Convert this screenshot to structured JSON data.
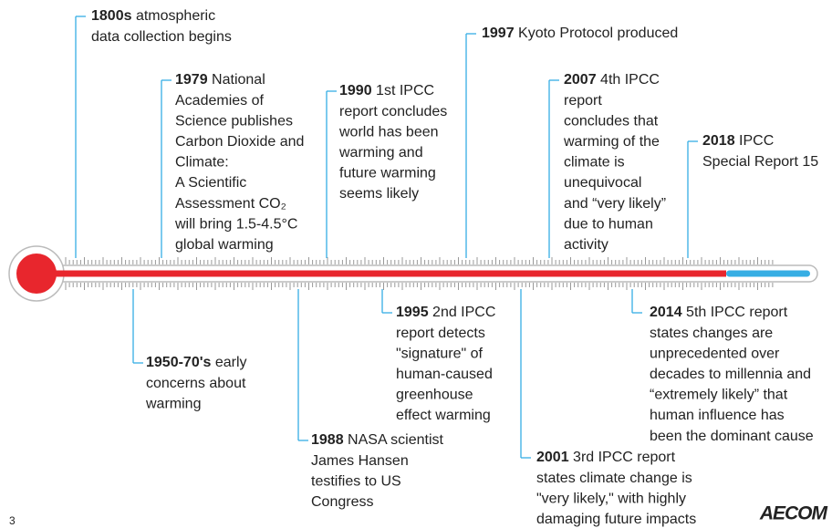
{
  "page_number": "3",
  "logo": "AECOM",
  "events": [
    {
      "year": "1800s",
      "text": [
        "atmospheric",
        "data collection begins"
      ]
    },
    {
      "year": "1979",
      "text": [
        "National",
        "Academies of",
        "Science publishes",
        "Carbon Dioxide and",
        "Climate:",
        "A Scientific",
        "Assessment  CO₂",
        "will bring 1.5-4.5°C",
        "global warming"
      ]
    },
    {
      "year": "1990",
      "text": [
        "1st IPCC",
        "report concludes",
        "world has been",
        "warming and",
        "future warming",
        "seems likely"
      ]
    },
    {
      "year": "1997",
      "text": [
        "Kyoto Protocol produced"
      ]
    },
    {
      "year": "2007",
      "text": [
        "4th IPCC",
        "report",
        "concludes that",
        "warming of the",
        "climate is",
        "unequivocal",
        "and “very likely”",
        "due to human",
        "activity"
      ]
    },
    {
      "year": "2018",
      "text": [
        "IPCC",
        "Special Report 15"
      ]
    },
    {
      "year": "1950-70's",
      "text": [
        "early",
        "concerns about",
        "warming"
      ]
    },
    {
      "year": "1988",
      "text": [
        "NASA scientist",
        "James Hansen",
        "testifies to US",
        "Congress"
      ]
    },
    {
      "year": "1995",
      "text": [
        "2nd IPCC",
        "report detects",
        "\"signature\" of",
        "human-caused",
        "greenhouse",
        "effect warming"
      ]
    },
    {
      "year": "2001",
      "text": [
        "3rd IPCC report",
        "states climate change is",
        "\"very likely,\" with highly",
        "damaging future impacts"
      ]
    },
    {
      "year": "2014",
      "text": [
        "5th IPCC report",
        "states changes are",
        "unprecedented over",
        "decades to millennia and",
        "“extremely likely” that",
        "human influence has",
        "been the dominant cause"
      ]
    }
  ]
}
